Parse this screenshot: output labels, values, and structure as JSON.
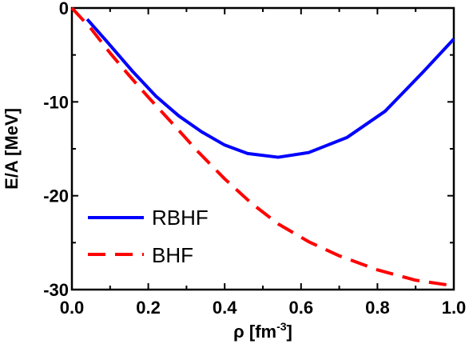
{
  "chart_data": {
    "type": "line",
    "xlabel": "ρ [fm",
    "xlabel_sup": "-3",
    "xlabel_end": "]",
    "ylabel": "E/A [MeV]",
    "xlim": [
      0.0,
      1.0
    ],
    "ylim": [
      -30,
      0
    ],
    "xticks": [
      "0.0",
      "0.2",
      "0.4",
      "0.6",
      "0.8",
      "1.0"
    ],
    "yticks": [
      "0",
      "-10",
      "-20",
      "-30"
    ],
    "grid": false,
    "legend_position": "bottom-left",
    "series": [
      {
        "name": "RBHF",
        "color": "#0000ff",
        "dash": "solid",
        "x": [
          0.04,
          0.09,
          0.16,
          0.22,
          0.28,
          0.34,
          0.4,
          0.46,
          0.54,
          0.62,
          0.72,
          0.82,
          0.92,
          1.0
        ],
        "y": [
          -1.2,
          -3.5,
          -6.8,
          -9.4,
          -11.5,
          -13.2,
          -14.6,
          -15.5,
          -15.9,
          -15.4,
          -13.8,
          -11.0,
          -6.8,
          -3.3
        ]
      },
      {
        "name": "BHF",
        "color": "#ff0000",
        "dash": "dashed",
        "x": [
          0.0,
          0.05,
          0.1,
          0.15,
          0.2,
          0.27,
          0.33,
          0.4,
          0.47,
          0.54,
          0.62,
          0.7,
          0.8,
          0.9,
          1.0
        ],
        "y": [
          0.0,
          -2.2,
          -4.8,
          -7.2,
          -9.5,
          -12.6,
          -15.3,
          -18.2,
          -20.8,
          -23.0,
          -24.9,
          -26.4,
          -27.9,
          -29.0,
          -29.6
        ]
      }
    ]
  }
}
